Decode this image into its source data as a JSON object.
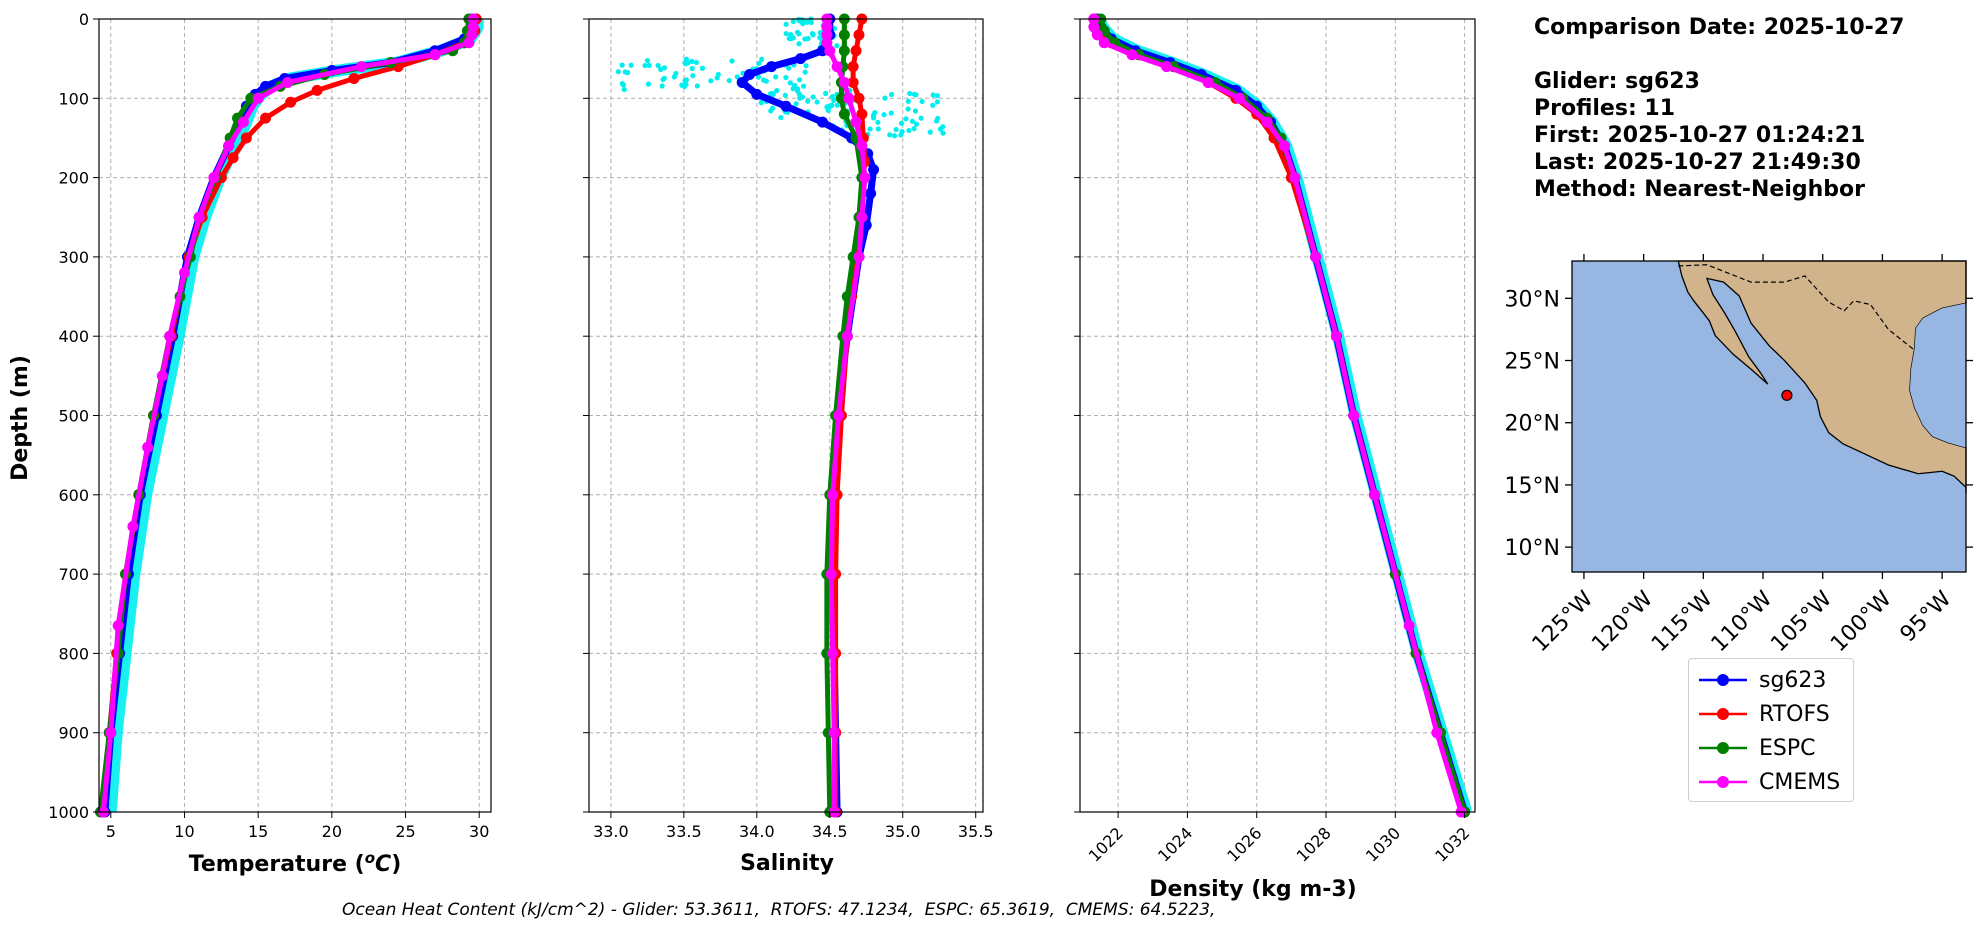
{
  "info": {
    "comparison_date": "Comparison Date: 2025-10-27",
    "glider": "Glider: sg623",
    "profiles": "Profiles: 11",
    "first": "First: 2025-10-27 01:24:21",
    "last": "Last: 2025-10-27 21:49:30",
    "method": "Method: Nearest-Neighbor"
  },
  "footer": "Ocean Heat Content (kJ/cm^2) - Glider: 53.3611,  RTOFS: 47.1234,  ESPC: 65.3619,  CMEMS: 64.5223,",
  "legend": [
    {
      "name": "sg623",
      "color": "#0000ff"
    },
    {
      "name": "RTOFS",
      "color": "#ff0000"
    },
    {
      "name": "ESPC",
      "color": "#008000"
    },
    {
      "name": "CMEMS",
      "color": "#ff00ff"
    }
  ],
  "colors": {
    "glider_raw": "#00eeee",
    "ocean": "#97b6e1",
    "land": "#d2b48c"
  },
  "chart_data": [
    {
      "type": "line",
      "xlabel": "Temperature (°C)",
      "ylabel": "Depth (m)",
      "xlim": [
        4.2,
        30.8
      ],
      "ylim": [
        1000,
        0
      ],
      "xticks": [
        5,
        10,
        15,
        20,
        25,
        30
      ],
      "yticks": [
        0,
        100,
        200,
        300,
        400,
        500,
        600,
        700,
        800,
        900,
        1000
      ],
      "grid": true,
      "series": [
        {
          "name": "sg623",
          "depth": [
            0,
            10,
            25,
            40,
            55,
            65,
            75,
            85,
            95,
            110,
            130,
            160,
            200,
            250,
            300,
            400,
            500,
            600,
            700,
            800,
            900,
            1000
          ],
          "values": [
            29.5,
            29.5,
            29.0,
            27.0,
            24.0,
            20.0,
            16.8,
            15.5,
            14.8,
            14.2,
            13.8,
            13.0,
            12.0,
            11.0,
            10.2,
            9.2,
            8.1,
            7.0,
            6.2,
            5.6,
            5.0,
            4.6
          ]
        },
        {
          "name": "RTOFS",
          "depth": [
            0,
            15,
            30,
            45,
            60,
            75,
            90,
            105,
            125,
            150,
            175,
            200,
            250,
            300,
            400,
            500,
            600,
            700,
            800,
            900,
            1000
          ],
          "values": [
            29.8,
            29.7,
            29.0,
            27.0,
            24.5,
            21.5,
            19.0,
            17.2,
            15.5,
            14.2,
            13.3,
            12.5,
            11.2,
            10.3,
            9.1,
            7.9,
            6.9,
            6.0,
            5.4,
            4.9,
            4.5
          ]
        },
        {
          "name": "ESPC",
          "depth": [
            0,
            15,
            30,
            40,
            55,
            70,
            85,
            100,
            125,
            150,
            200,
            250,
            300,
            350,
            400,
            500,
            600,
            700,
            800,
            900,
            1000
          ],
          "values": [
            29.3,
            29.2,
            29.0,
            28.2,
            24.0,
            19.5,
            16.5,
            14.5,
            13.6,
            13.1,
            12.1,
            11.0,
            10.4,
            9.7,
            9.0,
            7.9,
            6.9,
            6.0,
            5.5,
            4.9,
            4.3
          ]
        },
        {
          "name": "CMEMS",
          "depth": [
            0,
            10,
            20,
            30,
            45,
            60,
            80,
            100,
            130,
            160,
            200,
            250,
            320,
            400,
            450,
            540,
            640,
            765,
            900,
            1000
          ],
          "values": [
            29.6,
            29.6,
            29.5,
            29.3,
            27.0,
            22.0,
            17.0,
            15.0,
            14.0,
            13.0,
            12.0,
            11.0,
            10.0,
            9.0,
            8.5,
            7.5,
            6.5,
            5.5,
            5.0,
            4.5
          ]
        }
      ]
    },
    {
      "type": "line",
      "xlabel": "Salinity",
      "ylim": [
        1000,
        0
      ],
      "xlim": [
        32.85,
        35.55
      ],
      "xticks": [
        33.0,
        33.5,
        34.0,
        34.5,
        35.0,
        35.5
      ],
      "yticks": [
        0,
        100,
        200,
        300,
        400,
        500,
        600,
        700,
        800,
        900,
        1000
      ],
      "grid": true,
      "series": [
        {
          "name": "sg623",
          "depth": [
            0,
            20,
            40,
            50,
            60,
            70,
            80,
            95,
            110,
            130,
            150,
            170,
            190,
            220,
            260,
            300,
            400,
            500,
            600,
            700,
            800,
            900,
            1000
          ],
          "values": [
            34.5,
            34.5,
            34.45,
            34.3,
            34.1,
            33.95,
            33.9,
            34.0,
            34.2,
            34.45,
            34.65,
            34.76,
            34.8,
            34.78,
            34.75,
            34.7,
            34.62,
            34.55,
            34.52,
            34.52,
            34.53,
            34.54,
            34.55
          ]
        },
        {
          "name": "RTOFS",
          "depth": [
            0,
            20,
            40,
            60,
            80,
            100,
            120,
            150,
            180,
            200,
            250,
            300,
            350,
            400,
            500,
            600,
            700,
            800,
            900,
            1000
          ],
          "values": [
            34.72,
            34.7,
            34.68,
            34.66,
            34.66,
            34.7,
            34.72,
            34.73,
            34.74,
            34.73,
            34.71,
            34.68,
            34.65,
            34.62,
            34.58,
            34.55,
            34.54,
            34.54,
            34.54,
            34.54
          ]
        },
        {
          "name": "ESPC",
          "depth": [
            0,
            20,
            40,
            60,
            80,
            100,
            120,
            150,
            200,
            250,
            300,
            350,
            400,
            500,
            600,
            700,
            800,
            900,
            1000
          ],
          "values": [
            34.6,
            34.6,
            34.6,
            34.59,
            34.58,
            34.58,
            34.6,
            34.68,
            34.72,
            34.7,
            34.66,
            34.62,
            34.59,
            34.54,
            34.5,
            34.48,
            34.48,
            34.49,
            34.5
          ]
        },
        {
          "name": "CMEMS",
          "depth": [
            0,
            10,
            20,
            30,
            40,
            60,
            80,
            100,
            130,
            160,
            200,
            250,
            300,
            400,
            500,
            600,
            700,
            800,
            900,
            1000
          ],
          "values": [
            34.48,
            34.48,
            34.48,
            34.48,
            34.5,
            34.55,
            34.6,
            34.63,
            34.68,
            34.72,
            34.74,
            34.72,
            34.7,
            34.62,
            34.56,
            34.52,
            34.51,
            34.52,
            34.53,
            34.53
          ]
        }
      ]
    },
    {
      "type": "line",
      "xlabel": "Density (kg m-3)",
      "ylim": [
        1000,
        0
      ],
      "xlim": [
        1020.9,
        1032.3
      ],
      "xticks": [
        1022,
        1024,
        1026,
        1028,
        1030,
        1032
      ],
      "yticks": [
        0,
        100,
        200,
        300,
        400,
        500,
        600,
        700,
        800,
        900,
        1000
      ],
      "grid": true,
      "series": [
        {
          "name": "sg623",
          "depth": [
            0,
            10,
            25,
            40,
            55,
            70,
            90,
            110,
            130,
            160,
            200,
            300,
            400,
            500,
            600,
            700,
            800,
            900,
            1000
          ],
          "values": [
            1021.4,
            1021.5,
            1021.8,
            1022.5,
            1023.5,
            1024.4,
            1025.4,
            1026.0,
            1026.4,
            1026.8,
            1027.1,
            1027.7,
            1028.3,
            1028.8,
            1029.4,
            1030.0,
            1030.6,
            1031.3,
            1032.0
          ]
        },
        {
          "name": "RTOFS",
          "depth": [
            0,
            15,
            30,
            45,
            60,
            80,
            100,
            120,
            150,
            200,
            300,
            400,
            500,
            600,
            700,
            800,
            900,
            1000
          ],
          "values": [
            1021.3,
            1021.4,
            1021.8,
            1022.6,
            1023.6,
            1024.6,
            1025.4,
            1026.0,
            1026.5,
            1027.0,
            1027.7,
            1028.3,
            1028.8,
            1029.4,
            1030.0,
            1030.6,
            1031.3,
            1032.0
          ]
        },
        {
          "name": "ESPC",
          "depth": [
            0,
            15,
            30,
            45,
            60,
            80,
            100,
            125,
            150,
            200,
            300,
            400,
            500,
            600,
            700,
            800,
            900,
            1000
          ],
          "values": [
            1021.5,
            1021.6,
            1021.9,
            1022.6,
            1023.6,
            1024.8,
            1025.6,
            1026.3,
            1026.7,
            1027.1,
            1027.7,
            1028.3,
            1028.8,
            1029.4,
            1030.0,
            1030.6,
            1031.3,
            1032.0
          ]
        },
        {
          "name": "CMEMS",
          "depth": [
            0,
            10,
            20,
            30,
            45,
            60,
            80,
            100,
            130,
            160,
            200,
            300,
            400,
            500,
            600,
            765,
            900,
            1000
          ],
          "values": [
            1021.3,
            1021.3,
            1021.4,
            1021.6,
            1022.4,
            1023.4,
            1024.6,
            1025.5,
            1026.3,
            1026.8,
            1027.1,
            1027.7,
            1028.3,
            1028.8,
            1029.4,
            1030.4,
            1031.2,
            1031.9
          ]
        }
      ]
    },
    {
      "type": "map",
      "lon_range": [
        -126,
        -93
      ],
      "lat_range": [
        8,
        33
      ],
      "lon_ticks": [
        "125°W",
        "120°W",
        "115°W",
        "110°W",
        "105°W",
        "100°W",
        "95°W"
      ],
      "lat_ticks": [
        "30°N",
        "25°N",
        "20°N",
        "15°N",
        "10°N"
      ],
      "point": {
        "lon": -108,
        "lat": 22.2
      }
    }
  ]
}
